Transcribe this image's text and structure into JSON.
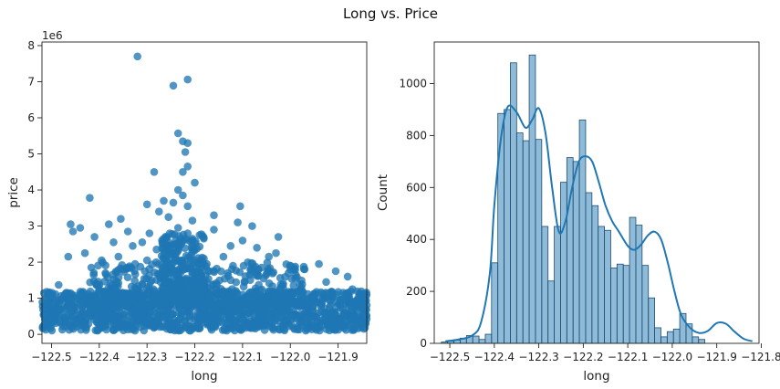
{
  "figure": {
    "title": "Long vs. Price"
  },
  "chart_data": [
    {
      "type": "scatter",
      "xlabel": "long",
      "ylabel": "price",
      "y_offset_label": "1e6",
      "xlim": [
        -122.52,
        -121.84
      ],
      "ylim": [
        -0.25,
        8.1
      ],
      "y_units": "millions (1e6)",
      "xticks": [
        -122.5,
        -122.4,
        -122.3,
        -122.2,
        -122.1,
        -122.0,
        -121.9
      ],
      "xtick_labels": [
        "−122.5",
        "−122.4",
        "−122.3",
        "−122.2",
        "−122.1",
        "−122.0",
        "−121.9"
      ],
      "yticks": [
        0,
        1,
        2,
        3,
        4,
        5,
        6,
        7,
        8
      ],
      "ytick_labels": [
        "0",
        "1",
        "2",
        "3",
        "4",
        "5",
        "6",
        "7",
        "8"
      ],
      "color": "#1f77b4",
      "grid": false,
      "points": [
        [
          -122.32,
          7.7
        ],
        [
          -122.215,
          7.06
        ],
        [
          -122.245,
          6.89
        ],
        [
          -122.235,
          5.57
        ],
        [
          -122.225,
          5.35
        ],
        [
          -122.215,
          5.3
        ],
        [
          -122.22,
          5.05
        ],
        [
          -122.215,
          4.65
        ],
        [
          -122.225,
          4.5
        ],
        [
          -122.285,
          4.5
        ],
        [
          -122.2,
          4.2
        ],
        [
          -122.235,
          4.0
        ],
        [
          -122.225,
          3.85
        ],
        [
          -122.42,
          3.78
        ],
        [
          -122.265,
          3.7
        ],
        [
          -122.245,
          3.65
        ],
        [
          -122.3,
          3.6
        ],
        [
          -122.105,
          3.55
        ],
        [
          -122.215,
          3.55
        ],
        [
          -122.275,
          3.4
        ],
        [
          -122.16,
          3.3
        ],
        [
          -122.355,
          3.2
        ],
        [
          -122.255,
          3.25
        ],
        [
          -122.46,
          3.05
        ],
        [
          -122.44,
          2.95
        ],
        [
          -122.08,
          3.0
        ],
        [
          -122.11,
          3.1
        ],
        [
          -122.38,
          3.05
        ],
        [
          -122.34,
          2.85
        ],
        [
          -122.295,
          2.8
        ],
        [
          -122.19,
          2.75
        ],
        [
          -122.16,
          2.9
        ],
        [
          -122.025,
          2.7
        ],
        [
          -122.1,
          2.6
        ],
        [
          -122.07,
          2.4
        ],
        [
          -122.125,
          2.45
        ],
        [
          -122.235,
          2.95
        ],
        [
          -122.205,
          3.15
        ],
        [
          -122.455,
          2.85
        ],
        [
          -122.41,
          2.7
        ],
        [
          -122.37,
          2.55
        ],
        [
          -122.33,
          2.45
        ],
        [
          -122.31,
          2.55
        ],
        [
          -122.28,
          2.35
        ],
        [
          -122.03,
          2.25
        ],
        [
          -122.045,
          2.15
        ],
        [
          -121.94,
          1.95
        ],
        [
          -121.97,
          1.8
        ],
        [
          -122.175,
          1.95
        ],
        [
          -122.14,
          2.15
        ],
        [
          -122.24,
          2.5
        ],
        [
          -122.205,
          2.65
        ],
        [
          -122.36,
          2.15
        ],
        [
          -122.395,
          2.05
        ],
        [
          -122.43,
          2.25
        ],
        [
          -122.465,
          2.15
        ],
        [
          -121.88,
          1.6
        ],
        [
          -121.905,
          1.75
        ],
        [
          -122.0,
          1.9
        ],
        [
          -122.06,
          1.85
        ],
        [
          -122.085,
          1.65
        ],
        [
          -122.12,
          1.9
        ],
        [
          -122.255,
          2.2
        ],
        [
          -122.3,
          2.05
        ],
        [
          -122.17,
          1.75
        ],
        [
          -122.485,
          1.37
        ],
        [
          -122.35,
          1.8
        ],
        [
          -122.325,
          1.95
        ],
        [
          -121.99,
          1.55
        ],
        [
          -122.015,
          1.4
        ],
        [
          -121.925,
          1.45
        ],
        [
          -121.87,
          1.25
        ],
        [
          -122.5,
          0.62
        ],
        [
          -122.515,
          0.55
        ],
        [
          -122.48,
          0.7
        ],
        [
          -122.45,
          0.75
        ],
        [
          -122.47,
          0.9
        ],
        [
          -121.86,
          0.75
        ]
      ],
      "dense_region": {
        "x_range": [
          -122.52,
          -121.84
        ],
        "price_range": [
          0.1,
          1.2
        ],
        "peak_x_range": [
          -122.27,
          -122.18
        ],
        "peak_price": 2.8
      }
    },
    {
      "type": "histogram",
      "xlabel": "long",
      "ylabel": "Count",
      "xlim": [
        -122.535,
        -121.805
      ],
      "ylim": [
        0,
        1160
      ],
      "xticks": [
        -122.5,
        -122.4,
        -122.3,
        -122.2,
        -122.1,
        -122.0,
        -121.9,
        -121.8
      ],
      "xtick_labels": [
        "−122.5",
        "−122.4",
        "−122.3",
        "−122.2",
        "−122.1",
        "−122.0",
        "−121.9",
        "−121.8"
      ],
      "yticks": [
        0,
        200,
        400,
        600,
        800,
        1000
      ],
      "ytick_labels": [
        "0",
        "200",
        "400",
        "600",
        "800",
        "1000"
      ],
      "bin_start": -122.519,
      "bin_width": 0.0141,
      "counts": [
        5,
        8,
        12,
        20,
        30,
        28,
        15,
        35,
        310,
        885,
        900,
        1080,
        810,
        780,
        1110,
        785,
        450,
        240,
        450,
        620,
        715,
        700,
        860,
        580,
        530,
        450,
        435,
        290,
        305,
        300,
        485,
        455,
        300,
        175,
        60,
        25,
        45,
        55,
        115,
        75,
        25,
        15
      ],
      "kde_curve": {
        "x": [
          -122.51,
          -122.48,
          -122.45,
          -122.43,
          -122.41,
          -122.4,
          -122.385,
          -122.37,
          -122.35,
          -122.33,
          -122.315,
          -122.3,
          -122.285,
          -122.27,
          -122.255,
          -122.24,
          -122.225,
          -122.21,
          -122.195,
          -122.18,
          -122.165,
          -122.15,
          -122.135,
          -122.12,
          -122.1,
          -122.085,
          -122.07,
          -122.055,
          -122.04,
          -122.025,
          -122.01,
          -121.995,
          -121.98,
          -121.96,
          -121.94,
          -121.92,
          -121.9,
          -121.88,
          -121.86,
          -121.84,
          -121.82
        ],
        "y": [
          8,
          15,
          30,
          80,
          270,
          530,
          790,
          910,
          890,
          830,
          860,
          905,
          810,
          600,
          430,
          470,
          600,
          700,
          720,
          700,
          620,
          530,
          470,
          430,
          375,
          360,
          380,
          415,
          430,
          400,
          310,
          200,
          110,
          60,
          40,
          48,
          78,
          76,
          45,
          18,
          8
        ]
      },
      "color": "#1f77b4",
      "grid": false
    }
  ]
}
